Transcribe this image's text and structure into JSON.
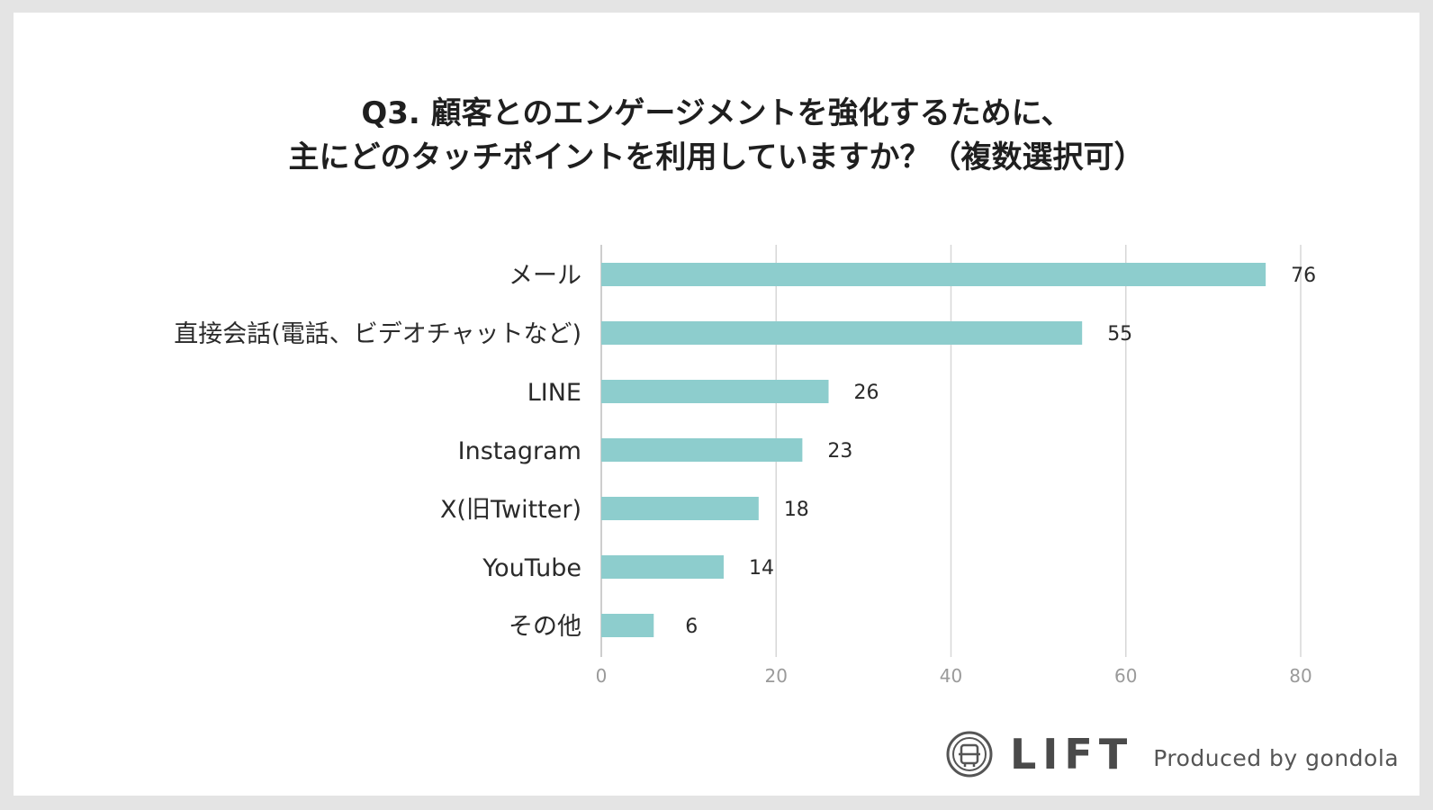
{
  "title_lines": [
    "Q3. 顧客とのエンゲージメントを強化するために、",
    "主にどのタッチポイントを利用していますか？（複数選択可）"
  ],
  "footer": {
    "brand": "LIFT",
    "produced_by": "Produced by gondola",
    "logo_icon": "lift-logo-icon"
  },
  "colors": {
    "bar": "#8dcdcd",
    "grid": "#d7d7d7",
    "axis": "#bdbdbd"
  },
  "chart_data": {
    "type": "bar",
    "orientation": "horizontal",
    "title": "Q3. 顧客とのエンゲージメントを強化するために、主にどのタッチポイントを利用していますか？（複数選択可）",
    "categories": [
      "メール",
      "直接会話(電話、ビデオチャットなど)",
      "LINE",
      "Instagram",
      "X(旧Twitter)",
      "YouTube",
      "その他"
    ],
    "values": [
      76,
      55,
      26,
      23,
      18,
      14,
      6
    ],
    "xlim": [
      0,
      80
    ],
    "xticks": [
      0,
      20,
      40,
      60,
      80
    ],
    "grid": true,
    "xlabel": "",
    "ylabel": ""
  }
}
